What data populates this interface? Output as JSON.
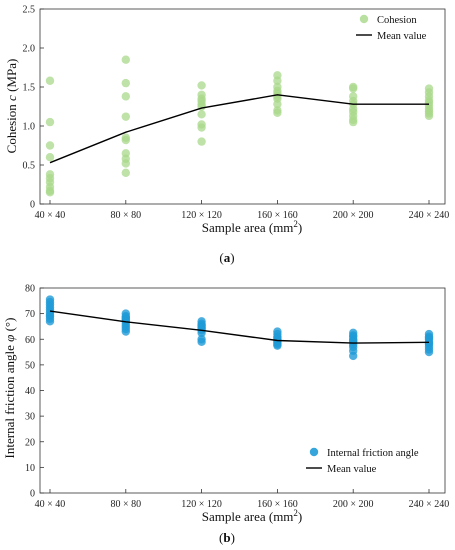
{
  "chart_data": [
    {
      "type": "scatter",
      "caption": {
        "open": "(",
        "letter": "a",
        "close": ")"
      },
      "ylabel": {
        "main": "Cohesion ",
        "italic": "c",
        "unit": " (MPa)"
      },
      "xlabel": {
        "main": "Sample  area (mm",
        "sup": "2",
        "close": ")"
      },
      "categories": [
        "40 × 40",
        "80 × 80",
        "120 × 120",
        "160 × 160",
        "200 × 200",
        "240 × 240"
      ],
      "x": [
        40,
        80,
        120,
        160,
        200,
        240
      ],
      "xlim": [
        40,
        240
      ],
      "ylim": [
        0,
        2.5
      ],
      "yticks": [
        "0",
        "0.5",
        "1.0",
        "1.5",
        "2.0",
        "2.5"
      ],
      "ytick_values": [
        0,
        0.5,
        1.0,
        1.5,
        2.0,
        2.5
      ],
      "grid": false,
      "legend_position": "top-right",
      "series": [
        {
          "name": "Cohesion",
          "kind": "scatter",
          "color": "#a8d88a",
          "points": [
            [
              40,
              1.58
            ],
            [
              40,
              1.05
            ],
            [
              40,
              0.75
            ],
            [
              40,
              0.6
            ],
            [
              40,
              0.38
            ],
            [
              40,
              0.33
            ],
            [
              40,
              0.28
            ],
            [
              40,
              0.22
            ],
            [
              40,
              0.17
            ],
            [
              40,
              0.15
            ],
            [
              80,
              1.85
            ],
            [
              80,
              1.55
            ],
            [
              80,
              1.38
            ],
            [
              80,
              1.12
            ],
            [
              80,
              0.85
            ],
            [
              80,
              0.82
            ],
            [
              80,
              0.65
            ],
            [
              80,
              0.58
            ],
            [
              80,
              0.52
            ],
            [
              80,
              0.4
            ],
            [
              120,
              1.52
            ],
            [
              120,
              1.4
            ],
            [
              120,
              1.35
            ],
            [
              120,
              1.32
            ],
            [
              120,
              1.28
            ],
            [
              120,
              1.25
            ],
            [
              120,
              1.15
            ],
            [
              120,
              1.02
            ],
            [
              120,
              0.98
            ],
            [
              120,
              0.8
            ],
            [
              160,
              1.65
            ],
            [
              160,
              1.58
            ],
            [
              160,
              1.5
            ],
            [
              160,
              1.45
            ],
            [
              160,
              1.42
            ],
            [
              160,
              1.38
            ],
            [
              160,
              1.35
            ],
            [
              160,
              1.28
            ],
            [
              160,
              1.2
            ],
            [
              160,
              1.17
            ],
            [
              200,
              1.5
            ],
            [
              200,
              1.48
            ],
            [
              200,
              1.38
            ],
            [
              200,
              1.32
            ],
            [
              200,
              1.28
            ],
            [
              200,
              1.22
            ],
            [
              200,
              1.18
            ],
            [
              200,
              1.13
            ],
            [
              200,
              1.08
            ],
            [
              200,
              1.05
            ],
            [
              240,
              1.48
            ],
            [
              240,
              1.43
            ],
            [
              240,
              1.38
            ],
            [
              240,
              1.33
            ],
            [
              240,
              1.3
            ],
            [
              240,
              1.26
            ],
            [
              240,
              1.22
            ],
            [
              240,
              1.19
            ],
            [
              240,
              1.16
            ],
            [
              240,
              1.13
            ]
          ]
        },
        {
          "name": "Mean value",
          "kind": "line",
          "color": "#000000",
          "points": [
            [
              40,
              0.53
            ],
            [
              80,
              0.92
            ],
            [
              120,
              1.23
            ],
            [
              160,
              1.4
            ],
            [
              200,
              1.28
            ],
            [
              240,
              1.28
            ]
          ]
        }
      ]
    },
    {
      "type": "scatter",
      "caption": {
        "open": "(",
        "letter": "b",
        "close": ")"
      },
      "ylabel": {
        "main": "Internal friction angle ",
        "italic": "φ",
        "unit": " (°)"
      },
      "xlabel": {
        "main": "Sample  area (mm",
        "sup": "2",
        "close": ")"
      },
      "categories": [
        "40 × 40",
        "80 × 80",
        "120 × 120",
        "160 × 160",
        "200 × 200",
        "240 × 240"
      ],
      "x": [
        40,
        80,
        120,
        160,
        200,
        240
      ],
      "xlim": [
        40,
        240
      ],
      "ylim": [
        0,
        80
      ],
      "yticks": [
        "0",
        "10",
        "20",
        "30",
        "40",
        "50",
        "60",
        "70",
        "80"
      ],
      "ytick_values": [
        0,
        10,
        20,
        30,
        40,
        50,
        60,
        70,
        80
      ],
      "grid": false,
      "legend_position": "bottom-right",
      "series": [
        {
          "name": "Internal friction angle",
          "kind": "scatter",
          "color": "#1f9bd7",
          "points": [
            [
              40,
              75.5
            ],
            [
              40,
              74.5
            ],
            [
              40,
              73.5
            ],
            [
              40,
              72.5
            ],
            [
              40,
              71.5
            ],
            [
              40,
              70.5
            ],
            [
              40,
              69.5
            ],
            [
              40,
              69
            ],
            [
              40,
              68
            ],
            [
              40,
              67
            ],
            [
              80,
              70
            ],
            [
              80,
              69
            ],
            [
              80,
              68.5
            ],
            [
              80,
              68
            ],
            [
              80,
              67.5
            ],
            [
              80,
              67
            ],
            [
              80,
              66
            ],
            [
              80,
              65
            ],
            [
              80,
              64
            ],
            [
              80,
              63
            ],
            [
              120,
              67
            ],
            [
              120,
              66
            ],
            [
              120,
              65.5
            ],
            [
              120,
              65
            ],
            [
              120,
              64.5
            ],
            [
              120,
              64
            ],
            [
              120,
              63.5
            ],
            [
              120,
              62.5
            ],
            [
              120,
              60
            ],
            [
              120,
              59
            ],
            [
              160,
              63
            ],
            [
              160,
              62
            ],
            [
              160,
              61
            ],
            [
              160,
              60.5
            ],
            [
              160,
              60
            ],
            [
              160,
              59.5
            ],
            [
              160,
              59
            ],
            [
              160,
              58.5
            ],
            [
              160,
              58
            ],
            [
              160,
              57.5
            ],
            [
              200,
              62.5
            ],
            [
              200,
              61.5
            ],
            [
              200,
              61
            ],
            [
              200,
              60
            ],
            [
              200,
              59.5
            ],
            [
              200,
              59
            ],
            [
              200,
              58
            ],
            [
              200,
              57
            ],
            [
              200,
              55.5
            ],
            [
              200,
              53.5
            ],
            [
              240,
              62
            ],
            [
              240,
              61
            ],
            [
              240,
              60.5
            ],
            [
              240,
              60
            ],
            [
              240,
              59
            ],
            [
              240,
              58.5
            ],
            [
              240,
              58
            ],
            [
              240,
              57
            ],
            [
              240,
              56
            ],
            [
              240,
              55
            ]
          ]
        },
        {
          "name": "Mean value",
          "kind": "line",
          "color": "#000000",
          "points": [
            [
              40,
              71
            ],
            [
              80,
              66.8
            ],
            [
              120,
              63.5
            ],
            [
              160,
              59.5
            ],
            [
              200,
              58.5
            ],
            [
              240,
              58.8
            ]
          ]
        }
      ]
    }
  ]
}
